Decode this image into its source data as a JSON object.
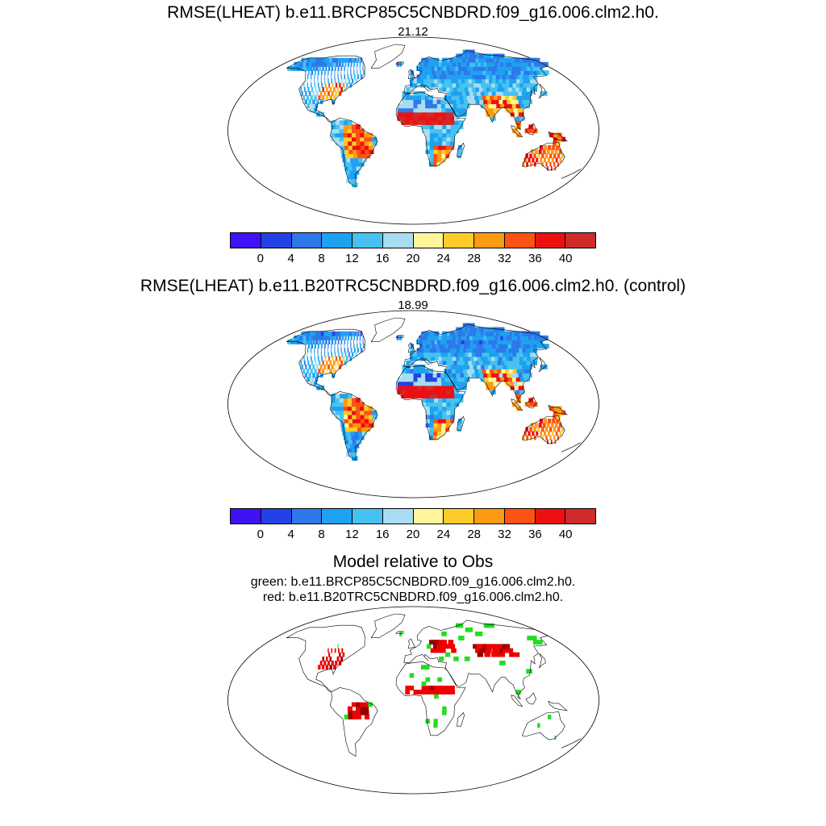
{
  "panels": [
    {
      "title": "RMSE(LHEAT) b.e11.BRCP85C5CNBDRD.f09_g16.006.clm2.h0.",
      "value": "21.12"
    },
    {
      "title": "RMSE(LHEAT) b.e11.B20TRC5CNBDRD.f09_g16.006.clm2.h0. (control)",
      "value": "18.99"
    }
  ],
  "colorbar": {
    "colors": [
      "#3f12f5",
      "#2342e6",
      "#2f78ea",
      "#1ea2f0",
      "#46c2f2",
      "#a8dcf0",
      "#fff59a",
      "#fdcc2a",
      "#fb9a13",
      "#fc5212",
      "#ed1010",
      "#cf2b2b"
    ],
    "labels": [
      "0",
      "4",
      "8",
      "12",
      "16",
      "20",
      "24",
      "28",
      "32",
      "36",
      "40"
    ]
  },
  "comparison": {
    "title": "Model relative to Obs",
    "legend_green": "green: b.e11.BRCP85C5CNBDRD.f09_g16.006.clm2.h0.",
    "legend_red": "red: b.e11.B20TRC5CNBDRD.f09_g16.006.clm2.h0.",
    "colors": {
      "green": "#22dd22",
      "red": "#ee0000",
      "darkred": "#990000"
    }
  }
}
